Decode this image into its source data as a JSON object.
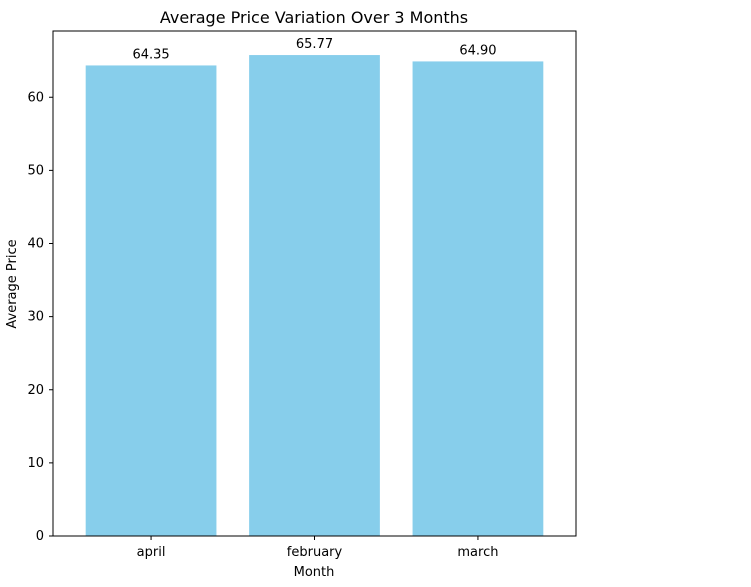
{
  "chart_data": {
    "type": "bar",
    "title": "Average Price Variation Over 3 Months",
    "xlabel": "Month",
    "ylabel": "Average Price",
    "categories": [
      "april",
      "february",
      "march"
    ],
    "values": [
      64.35,
      65.77,
      64.9
    ],
    "value_labels": [
      "64.35",
      "65.77",
      "64.90"
    ],
    "ylim": [
      0,
      69.06
    ],
    "yticks": [
      0,
      10,
      20,
      30,
      40,
      50,
      60
    ],
    "ytick_labels": [
      "0",
      "10",
      "20",
      "30",
      "40",
      "50",
      "60"
    ],
    "grid": false,
    "bar_color": "#87ceeb",
    "axis_color": "#000000",
    "text_color": "#000000"
  }
}
